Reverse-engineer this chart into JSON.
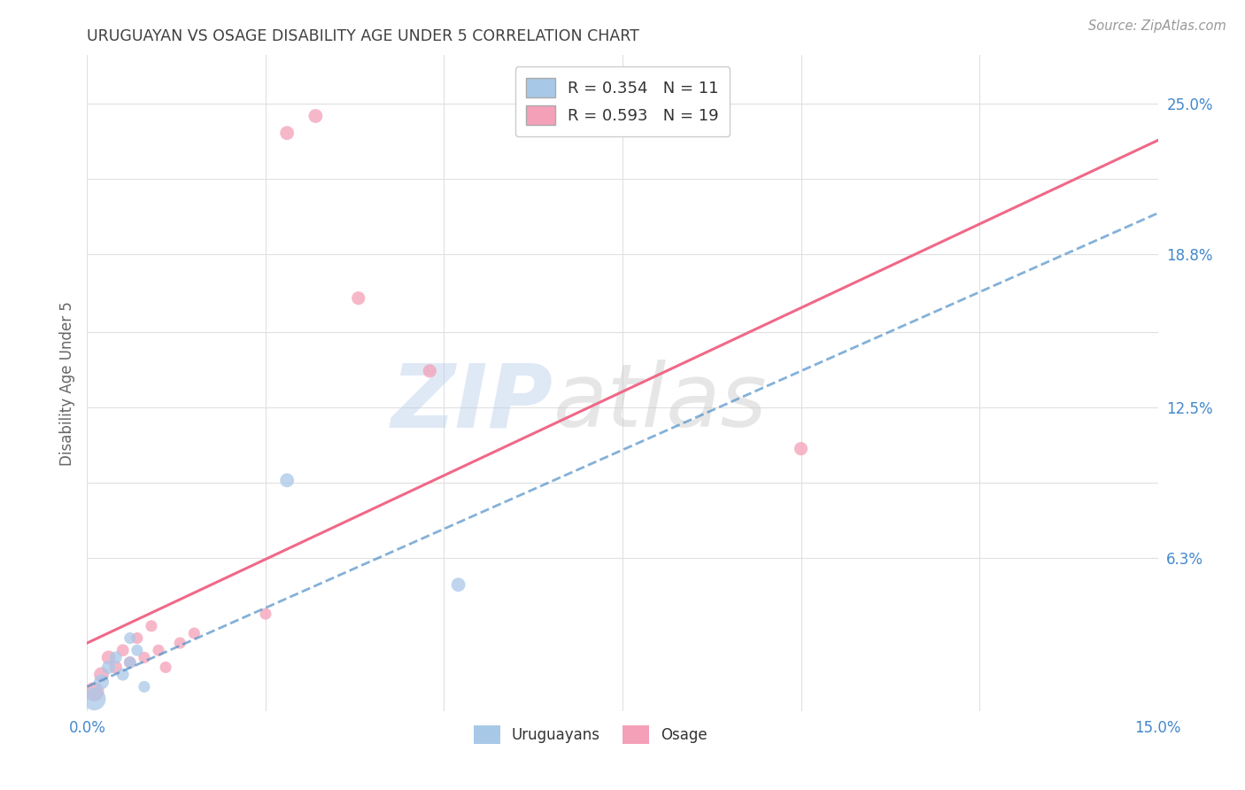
{
  "title": "URUGUAYAN VS OSAGE DISABILITY AGE UNDER 5 CORRELATION CHART",
  "source": "Source: ZipAtlas.com",
  "ylabel": "Disability Age Under 5",
  "xlabel": "",
  "xlim": [
    0.0,
    0.15
  ],
  "ylim": [
    0.0,
    0.27
  ],
  "xticks": [
    0.0,
    0.025,
    0.05,
    0.075,
    0.1,
    0.125,
    0.15
  ],
  "xtick_labels": [
    "0.0%",
    "",
    "",
    "",
    "",
    "",
    "15.0%"
  ],
  "ytick_positions_right": [
    0.0,
    0.063,
    0.094,
    0.125,
    0.156,
    0.188,
    0.219,
    0.25
  ],
  "ytick_labels_right": [
    "",
    "6.3%",
    "",
    "12.5%",
    "",
    "18.8%",
    "",
    "25.0%"
  ],
  "watermark_top": "ZIP",
  "watermark_bot": "atlas",
  "legend_r1": "R = 0.354",
  "legend_n1": "N = 11",
  "legend_r2": "R = 0.593",
  "legend_n2": "N = 19",
  "uruguayan_color": "#a8c8e8",
  "osage_color": "#f4a0b8",
  "uruguayan_line_color": "#5090c8",
  "osage_line_color": "#f06888",
  "grid_color": "#e0e0e0",
  "title_color": "#404040",
  "axis_label_color": "#4488cc",
  "uruguayan_x": [
    0.001,
    0.002,
    0.003,
    0.004,
    0.005,
    0.006,
    0.006,
    0.007,
    0.008,
    0.028,
    0.052
  ],
  "uruguayan_y": [
    0.005,
    0.012,
    0.018,
    0.022,
    0.015,
    0.02,
    0.03,
    0.025,
    0.01,
    0.095,
    0.052
  ],
  "uruguayan_sizes": [
    350,
    150,
    120,
    100,
    100,
    90,
    90,
    90,
    90,
    130,
    130
  ],
  "osage_x": [
    0.001,
    0.002,
    0.003,
    0.004,
    0.005,
    0.006,
    0.007,
    0.008,
    0.009,
    0.01,
    0.011,
    0.013,
    0.015,
    0.025,
    0.028,
    0.032,
    0.038,
    0.048,
    0.1
  ],
  "osage_y": [
    0.008,
    0.015,
    0.022,
    0.018,
    0.025,
    0.02,
    0.03,
    0.022,
    0.035,
    0.025,
    0.018,
    0.028,
    0.032,
    0.04,
    0.238,
    0.245,
    0.17,
    0.14,
    0.108
  ],
  "osage_sizes": [
    250,
    150,
    130,
    110,
    100,
    100,
    90,
    90,
    90,
    90,
    90,
    90,
    90,
    90,
    130,
    130,
    120,
    120,
    120
  ],
  "osage_line_x0": 0.0,
  "osage_line_y0": 0.028,
  "osage_line_x1": 0.15,
  "osage_line_y1": 0.235,
  "uruguayan_line_x0": 0.0,
  "uruguayan_line_y0": 0.01,
  "uruguayan_line_x1": 0.15,
  "uruguayan_line_y1": 0.205
}
